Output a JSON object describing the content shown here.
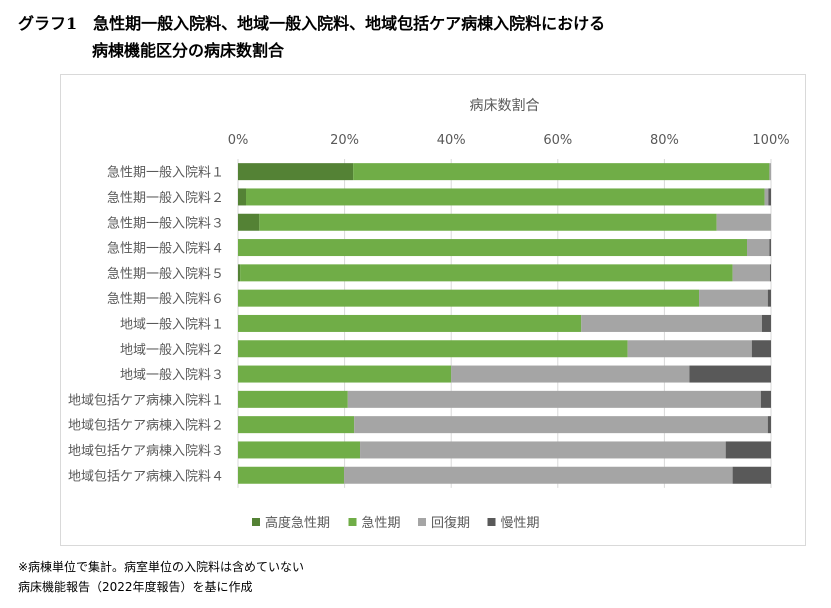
{
  "title_line1": "グラフ1　急性期一般入院料、地域一般入院料、地域包括ケア病棟入院料における",
  "title_line2": "病棟機能区分の病床数割合",
  "footnotes": [
    "※病棟単位で集計。病室単位の入院料は含めていない",
    "病床機能報告（2022年度報告）を基に作成"
  ],
  "chart_data": {
    "type": "bar",
    "orientation": "horizontal",
    "stacked": "percent",
    "title": "",
    "xlabel": "病床数割合",
    "xlim": [
      0,
      100
    ],
    "xticks": [
      "0%",
      "20%",
      "40%",
      "60%",
      "80%",
      "100%"
    ],
    "grid": true,
    "legend_position": "bottom",
    "categories": [
      "急性期一般入院料１",
      "急性期一般入院料２",
      "急性期一般入院料３",
      "急性期一般入院料４",
      "急性期一般入院料５",
      "急性期一般入院料６",
      "地域一般入院料１",
      "地域一般入院料２",
      "地域一般入院料３",
      "地域包括ケア病棟入院料１",
      "地域包括ケア病棟入院料２",
      "地域包括ケア病棟入院料３",
      "地域包括ケア病棟入院料４"
    ],
    "series": [
      {
        "name": "高度急性期",
        "color": "#548235",
        "values": [
          21.6,
          1.5,
          4.0,
          0,
          0.4,
          0,
          0,
          0,
          0,
          0,
          0,
          0,
          0
        ]
      },
      {
        "name": "急性期",
        "color": "#70ad47",
        "values": [
          78.1,
          97.3,
          85.8,
          95.5,
          92.4,
          86.5,
          64.4,
          73.1,
          40.0,
          20.6,
          21.8,
          22.9,
          19.9
        ]
      },
      {
        "name": "回復期",
        "color": "#a5a5a5",
        "values": [
          0.3,
          0.7,
          10.2,
          4.2,
          7.0,
          12.9,
          33.9,
          23.3,
          44.7,
          77.5,
          77.6,
          68.6,
          72.9
        ]
      },
      {
        "name": "慢性期",
        "color": "#595959",
        "values": [
          0,
          0.5,
          0,
          0.3,
          0.2,
          0.6,
          1.7,
          3.6,
          15.3,
          1.9,
          0.6,
          8.5,
          7.2
        ]
      }
    ]
  }
}
